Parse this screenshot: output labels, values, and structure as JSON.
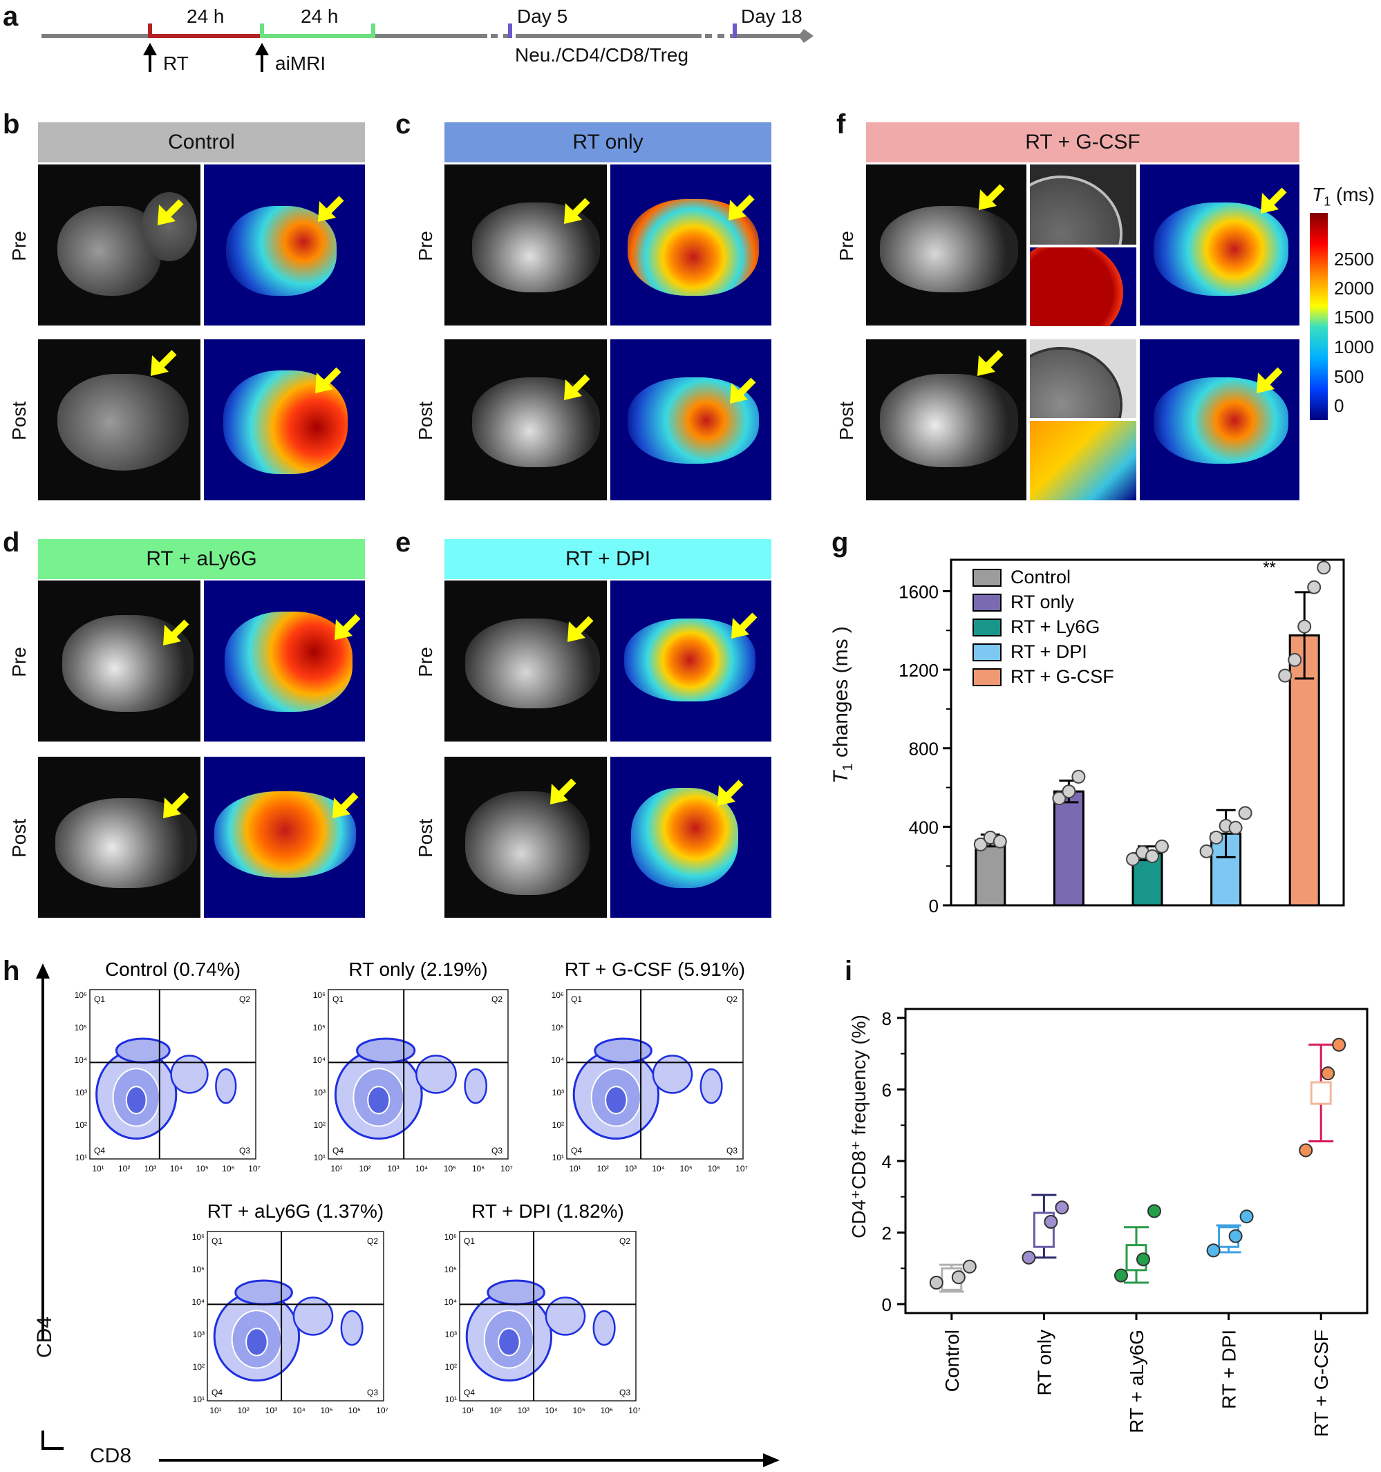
{
  "panels": {
    "a": "a",
    "b": "b",
    "c": "c",
    "d": "d",
    "e": "e",
    "f": "f",
    "g": "g",
    "h": "h",
    "i": "i"
  },
  "timeline": {
    "seg1": "24 h",
    "seg2": "24 h",
    "rt": "RT",
    "aimri": "aiMRI",
    "day5": "Day 5",
    "day18": "Day 18",
    "analysis": "Neu./CD4/CD8/Treg",
    "colors": {
      "axis": "#7f7f7f",
      "rt": "#b22222",
      "aimri": "#6de07f",
      "marker": "#6a5acd"
    }
  },
  "mri": {
    "row_pre": "Pre",
    "row_post": "Post",
    "groups": [
      {
        "key": "b",
        "title": "Control",
        "color": "#b8b8b8"
      },
      {
        "key": "c",
        "title": "RT only",
        "color": "#7198df"
      },
      {
        "key": "d",
        "title": "RT + aLy6G",
        "color": "#77f28f"
      },
      {
        "key": "e",
        "title": "RT + DPI",
        "color": "#77fcfc"
      },
      {
        "key": "f",
        "title": "RT + G-CSF",
        "color": "#f0aaaa"
      }
    ],
    "colorbar": {
      "title_italic": "T",
      "title_sub": "1",
      "title_unit": " (ms)",
      "ticks": [
        "2500",
        "2000",
        "1500",
        "1000",
        "500",
        "0"
      ]
    }
  },
  "chart_data": [
    {
      "panel": "g",
      "type": "bar",
      "ylabel_italic": "T",
      "ylabel_sub": "1",
      "ylabel_rest": " changes (ms )",
      "ylim": [
        0,
        1760
      ],
      "yticks": [
        0,
        400,
        800,
        1200,
        1600
      ],
      "yticklabels": [
        "0",
        "400",
        "800",
        "1200",
        "1600"
      ],
      "categories": [
        "Control",
        "RT only",
        "RT + Ly6G",
        "RT + DPI",
        "RT + G-CSF"
      ],
      "values": [
        330,
        580,
        265,
        365,
        1375
      ],
      "errors": [
        30,
        55,
        35,
        120,
        220
      ],
      "points": [
        [
          310,
          345,
          325
        ],
        [
          545,
          580,
          655
        ],
        [
          235,
          270,
          250,
          300
        ],
        [
          275,
          345,
          405,
          395,
          470
        ],
        [
          1170,
          1250,
          1420,
          1620,
          1720
        ]
      ],
      "colors": [
        "#9c9c9c",
        "#7a6ab2",
        "#19968a",
        "#7dc8f2",
        "#f09a73"
      ],
      "annotation": "**",
      "legend": "top-left"
    },
    {
      "panel": "i",
      "type": "box",
      "ylabel": "CD4⁺CD8⁺ frequency (%)",
      "ylim": [
        -0.25,
        8.25
      ],
      "yticks": [
        0,
        2,
        4,
        6,
        8
      ],
      "yticklabels": [
        "0",
        "2",
        "4",
        "6",
        "8"
      ],
      "categories": [
        "Control",
        "RT only",
        "aLy6G",
        "DPI",
        "G-CSF"
      ],
      "xticklabels": [
        "Control",
        "RT only",
        "RT + aLy6G",
        "RT + DPI",
        "RT + G-CSF"
      ],
      "box_low": [
        0.4,
        1.6,
        0.95,
        1.6,
        5.6
      ],
      "box_high": [
        1.0,
        2.55,
        1.65,
        2.15,
        6.2
      ],
      "whisker_low": [
        0.35,
        1.3,
        0.6,
        1.45,
        4.55
      ],
      "whisker_high": [
        1.1,
        3.05,
        2.15,
        2.2,
        7.25
      ],
      "points": [
        [
          0.6,
          0.75,
          1.05
        ],
        [
          1.3,
          2.3,
          2.7
        ],
        [
          0.8,
          1.25,
          2.6
        ],
        [
          1.5,
          1.9,
          2.45
        ],
        [
          4.3,
          6.45,
          7.25
        ]
      ],
      "box_colors": [
        "#b0b0b0",
        "#6a5aa6",
        "#2a9a4a",
        "#3da0e0",
        "#f2b89a"
      ],
      "line_colors": [
        "#b0b0b0",
        "#2a2a6e",
        "#2a9a4a",
        "#3da0e0",
        "#d9185a"
      ],
      "point_colors": [
        "#c8c8c8",
        "#9f8fd0",
        "#24a04a",
        "#55b8ec",
        "#f2905a"
      ]
    }
  ],
  "flow": {
    "y_axis": "CD4",
    "x_axis": "CD8",
    "plots": [
      {
        "title": "Control (0.74%)"
      },
      {
        "title": "RT only (2.19%)"
      },
      {
        "title": "RT + G-CSF (5.91%)"
      },
      {
        "title": "RT + aLy6G (1.37%)"
      },
      {
        "title": "RT + DPI (1.82%)"
      }
    ],
    "quadrants": [
      "Q1",
      "Q2",
      "Q3",
      "Q4"
    ],
    "xticks": [
      "10¹",
      "10²",
      "10³",
      "10⁴",
      "10⁵",
      "10⁶",
      "10⁷"
    ],
    "yticks": [
      "10⁶",
      "10⁵",
      "10⁴",
      "10³",
      "10²",
      "10¹"
    ]
  }
}
